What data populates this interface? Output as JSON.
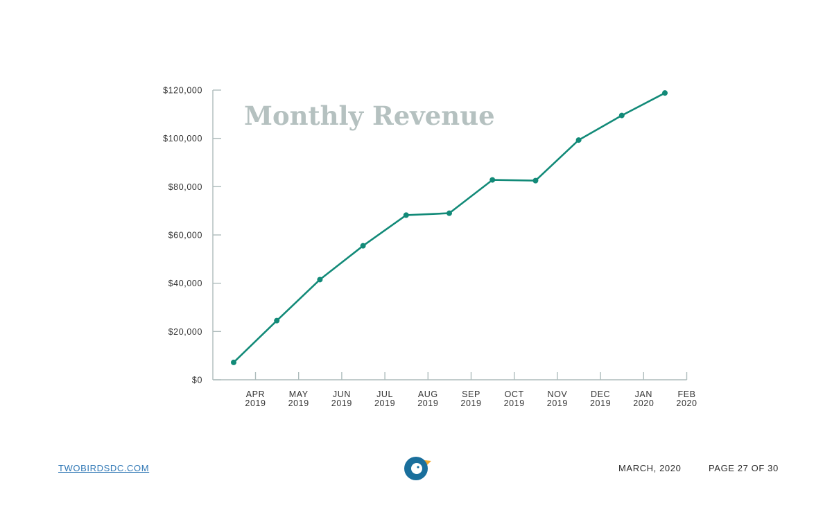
{
  "chart_data": {
    "type": "line",
    "title": "Monthly Revenue",
    "xlabel": "",
    "ylabel": "",
    "ylim": [
      0,
      120000
    ],
    "yticks": [
      0,
      20000,
      40000,
      60000,
      80000,
      100000,
      120000
    ],
    "ytick_labels": [
      "$0",
      "$20,000",
      "$40,000",
      "$60,000",
      "$80,000",
      "$100,000",
      "$120,000"
    ],
    "xtick_labels": [
      [
        "APR",
        "2019"
      ],
      [
        "MAY",
        "2019"
      ],
      [
        "JUN",
        "2019"
      ],
      [
        "JUL",
        "2019"
      ],
      [
        "AUG",
        "2019"
      ],
      [
        "SEP",
        "2019"
      ],
      [
        "OCT",
        "2019"
      ],
      [
        "NOV",
        "2019"
      ],
      [
        "DEC",
        "2019"
      ],
      [
        "JAN",
        "2020"
      ],
      [
        "FEB",
        "2020"
      ]
    ],
    "series": [
      {
        "name": "Monthly Revenue",
        "color": "#128a78",
        "values": [
          7200,
          24500,
          41500,
          55500,
          68200,
          69000,
          82800,
          82500,
          99300,
          109500,
          118800
        ]
      }
    ],
    "axis_color": "#aebcbc"
  },
  "footer": {
    "website": "TWOBIRDSDC.COM",
    "date": "MARCH, 2020",
    "page": "PAGE 27 OF 30"
  },
  "logo": {
    "icon": "bird-logo-icon",
    "circle_color": "#1a6f9c",
    "beak_color": "#f2a92d"
  }
}
